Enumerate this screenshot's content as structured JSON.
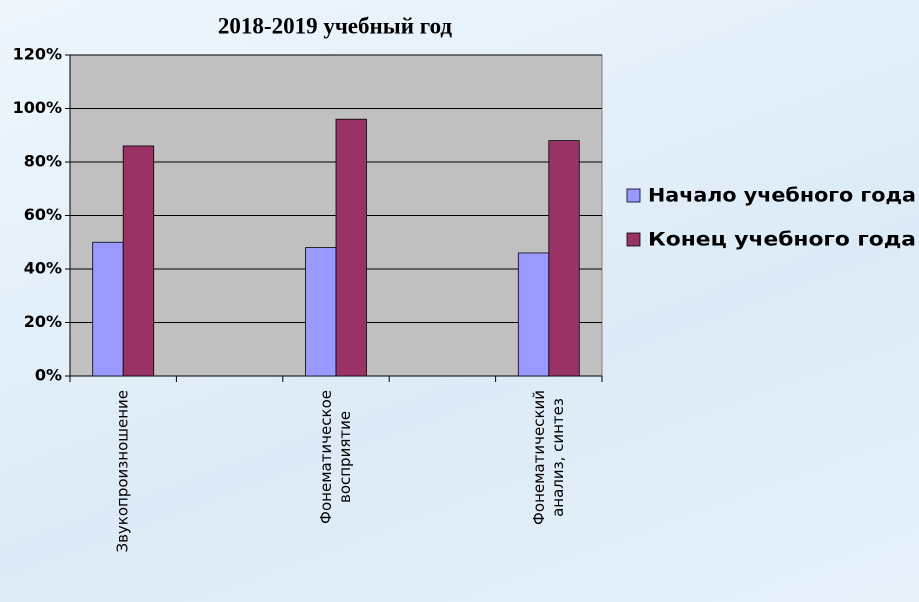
{
  "chart_data": {
    "type": "bar",
    "title": "2018-2019 учебный год",
    "categories": [
      "Звукопроизношение",
      null,
      "Фонематическое\nвосприятие",
      null,
      "Фонематический\nанализ, синтез"
    ],
    "series": [
      {
        "name": "Начало учебного года",
        "color": "#9999ff",
        "values": [
          50,
          null,
          48,
          null,
          46
        ]
      },
      {
        "name": "Конец учебного года",
        "color": "#993366",
        "values": [
          86,
          null,
          96,
          null,
          88
        ]
      }
    ],
    "ylim": [
      0,
      120
    ],
    "yticks": [
      {
        "value": 0,
        "label": "0%"
      },
      {
        "value": 20,
        "label": "20%"
      },
      {
        "value": 40,
        "label": "40%"
      },
      {
        "value": 60,
        "label": "60%"
      },
      {
        "value": 80,
        "label": "80%"
      },
      {
        "value": 100,
        "label": "100%"
      },
      {
        "value": 120,
        "label": "120%"
      }
    ],
    "grid": true,
    "legend": "right"
  }
}
